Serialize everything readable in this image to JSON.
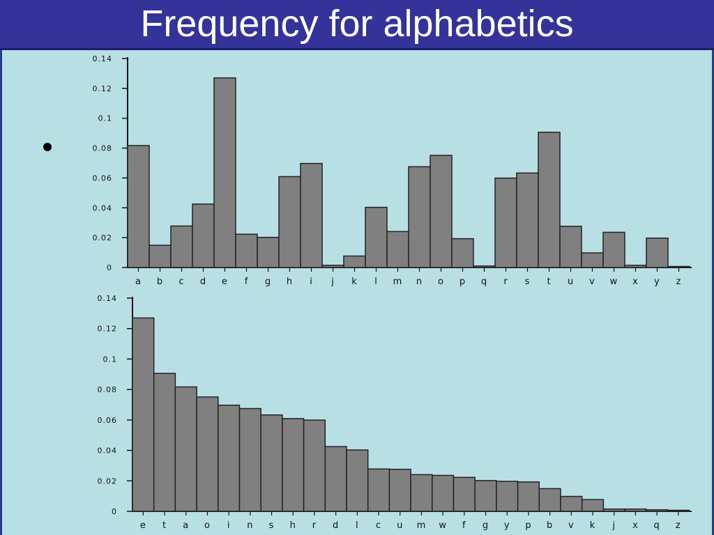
{
  "slide": {
    "title": "Frequency for alphabetics"
  },
  "colors": {
    "title_bar": "#33339a",
    "background": "#b8dfe3",
    "bar_fill": "#808080",
    "bar_stroke": "#222222"
  },
  "chart_data": [
    {
      "type": "bar",
      "title": "",
      "xlabel": "",
      "ylabel": "",
      "ylim": [
        0,
        0.14
      ],
      "yticks": [
        "0",
        "0.02",
        "0.04",
        "0.06",
        "0.08",
        "0.1",
        "0.12",
        "0.14"
      ],
      "categories": [
        "a",
        "b",
        "c",
        "d",
        "e",
        "f",
        "g",
        "h",
        "i",
        "j",
        "k",
        "l",
        "m",
        "n",
        "o",
        "p",
        "q",
        "r",
        "s",
        "t",
        "u",
        "v",
        "w",
        "x",
        "y",
        "z"
      ],
      "values": [
        0.0817,
        0.0149,
        0.0278,
        0.0425,
        0.127,
        0.0223,
        0.0202,
        0.0609,
        0.0697,
        0.0015,
        0.0077,
        0.0403,
        0.0241,
        0.0675,
        0.0751,
        0.0193,
        0.001,
        0.0599,
        0.0633,
        0.0906,
        0.0276,
        0.0098,
        0.0236,
        0.0015,
        0.0197,
        0.0007
      ]
    },
    {
      "type": "bar",
      "title": "",
      "xlabel": "",
      "ylabel": "",
      "ylim": [
        0,
        0.14
      ],
      "yticks": [
        "0",
        "0.02",
        "0.04",
        "0.06",
        "0.08",
        "0.1",
        "0.12",
        "0.14"
      ],
      "categories": [
        "e",
        "t",
        "a",
        "o",
        "i",
        "n",
        "s",
        "h",
        "r",
        "d",
        "l",
        "c",
        "u",
        "m",
        "w",
        "f",
        "g",
        "y",
        "p",
        "b",
        "v",
        "k",
        "j",
        "x",
        "q",
        "z"
      ],
      "values": [
        0.127,
        0.0906,
        0.0817,
        0.0751,
        0.0697,
        0.0675,
        0.0633,
        0.0609,
        0.0599,
        0.0425,
        0.0403,
        0.0278,
        0.0276,
        0.0241,
        0.0236,
        0.0223,
        0.0202,
        0.0197,
        0.0193,
        0.0149,
        0.0098,
        0.0077,
        0.0015,
        0.0015,
        0.001,
        0.0007
      ]
    }
  ]
}
